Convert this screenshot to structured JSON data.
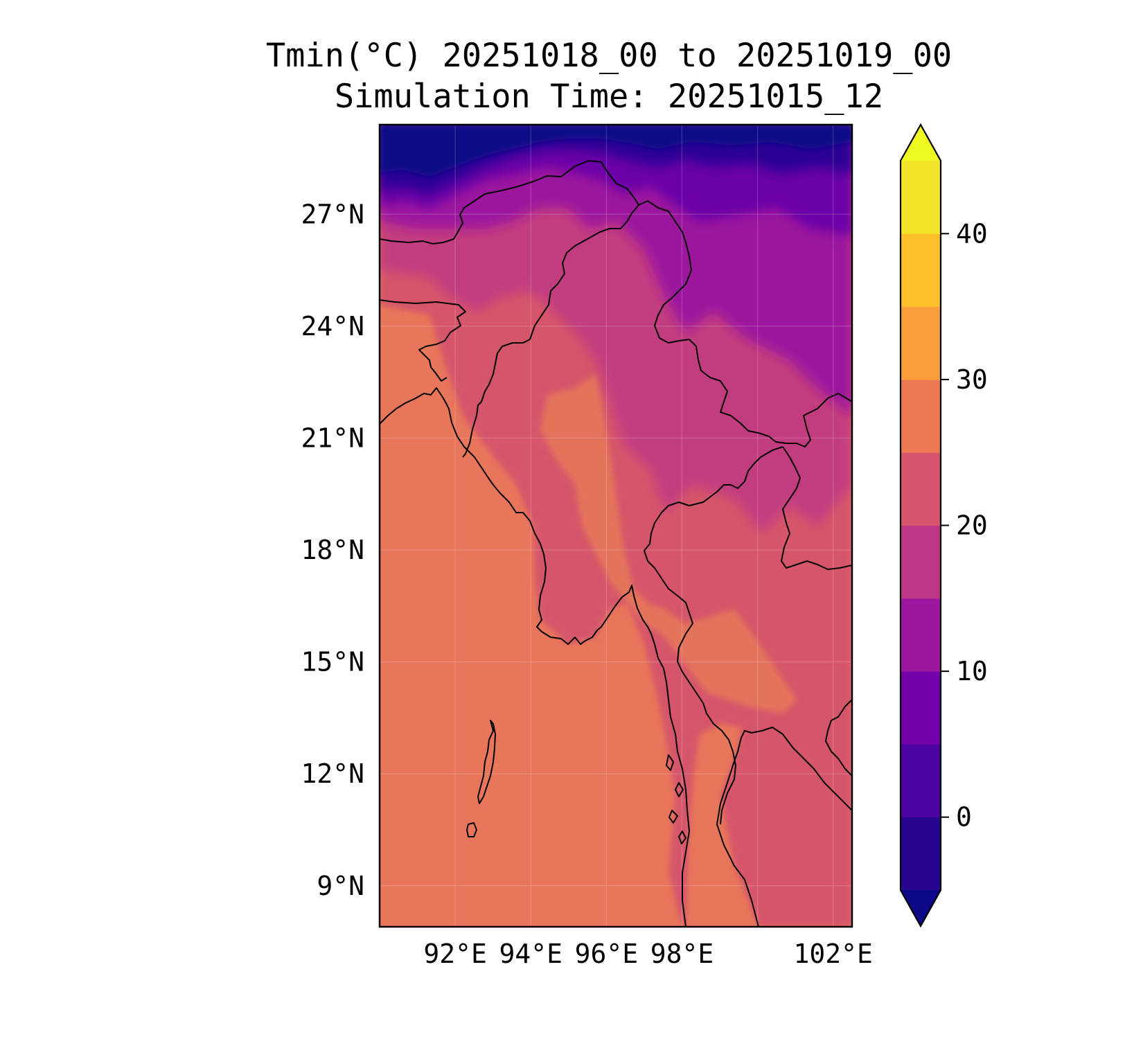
{
  "title": {
    "line1": "Tmin(°C) 20251018_00 to 20251019_00",
    "line2": "Simulation Time: 20251015_12"
  },
  "map": {
    "lon_range": [
      90.0,
      102.5
    ],
    "lat_range": [
      7.9,
      29.4
    ],
    "lat_ticks": [
      {
        "value": 27,
        "label": "27°N"
      },
      {
        "value": 24,
        "label": "24°N"
      },
      {
        "value": 21,
        "label": "21°N"
      },
      {
        "value": 18,
        "label": "18°N"
      },
      {
        "value": 15,
        "label": "15°N"
      },
      {
        "value": 12,
        "label": "12°N"
      },
      {
        "value": 9,
        "label": "9°N"
      }
    ],
    "lon_ticks": [
      {
        "value": 92,
        "label": "92°E"
      },
      {
        "value": 94,
        "label": "94°E"
      },
      {
        "value": 96,
        "label": "96°E"
      },
      {
        "value": 98,
        "label": "98°E"
      },
      {
        "value": 102,
        "label": "102°E"
      }
    ],
    "field_colors": {
      "sea": "#e8765a",
      "warm_land": "#e4735c",
      "mid_land": "#d5566b",
      "cool_land": "#c23d80",
      "cold_land": "#9c179e",
      "very_cold": "#6a00a8",
      "high_mountain": "#2c0594",
      "peak": "#0d0887"
    }
  },
  "colorbar": {
    "levels": [
      -5,
      0,
      5,
      10,
      15,
      20,
      25,
      30,
      35,
      40,
      45
    ],
    "colors": [
      "#26068f",
      "#4c02a1",
      "#7301a8",
      "#9c179e",
      "#bd3786",
      "#d6556d",
      "#ed7953",
      "#fa9e3b",
      "#fdbf2a",
      "#f2e426"
    ],
    "under_color": "#0d0887",
    "over_color": "#f0f921",
    "ticks": [
      {
        "value": 0,
        "label": "0"
      },
      {
        "value": 10,
        "label": "10"
      },
      {
        "value": 20,
        "label": "20"
      },
      {
        "value": 30,
        "label": "30"
      },
      {
        "value": 40,
        "label": "40"
      }
    ]
  }
}
